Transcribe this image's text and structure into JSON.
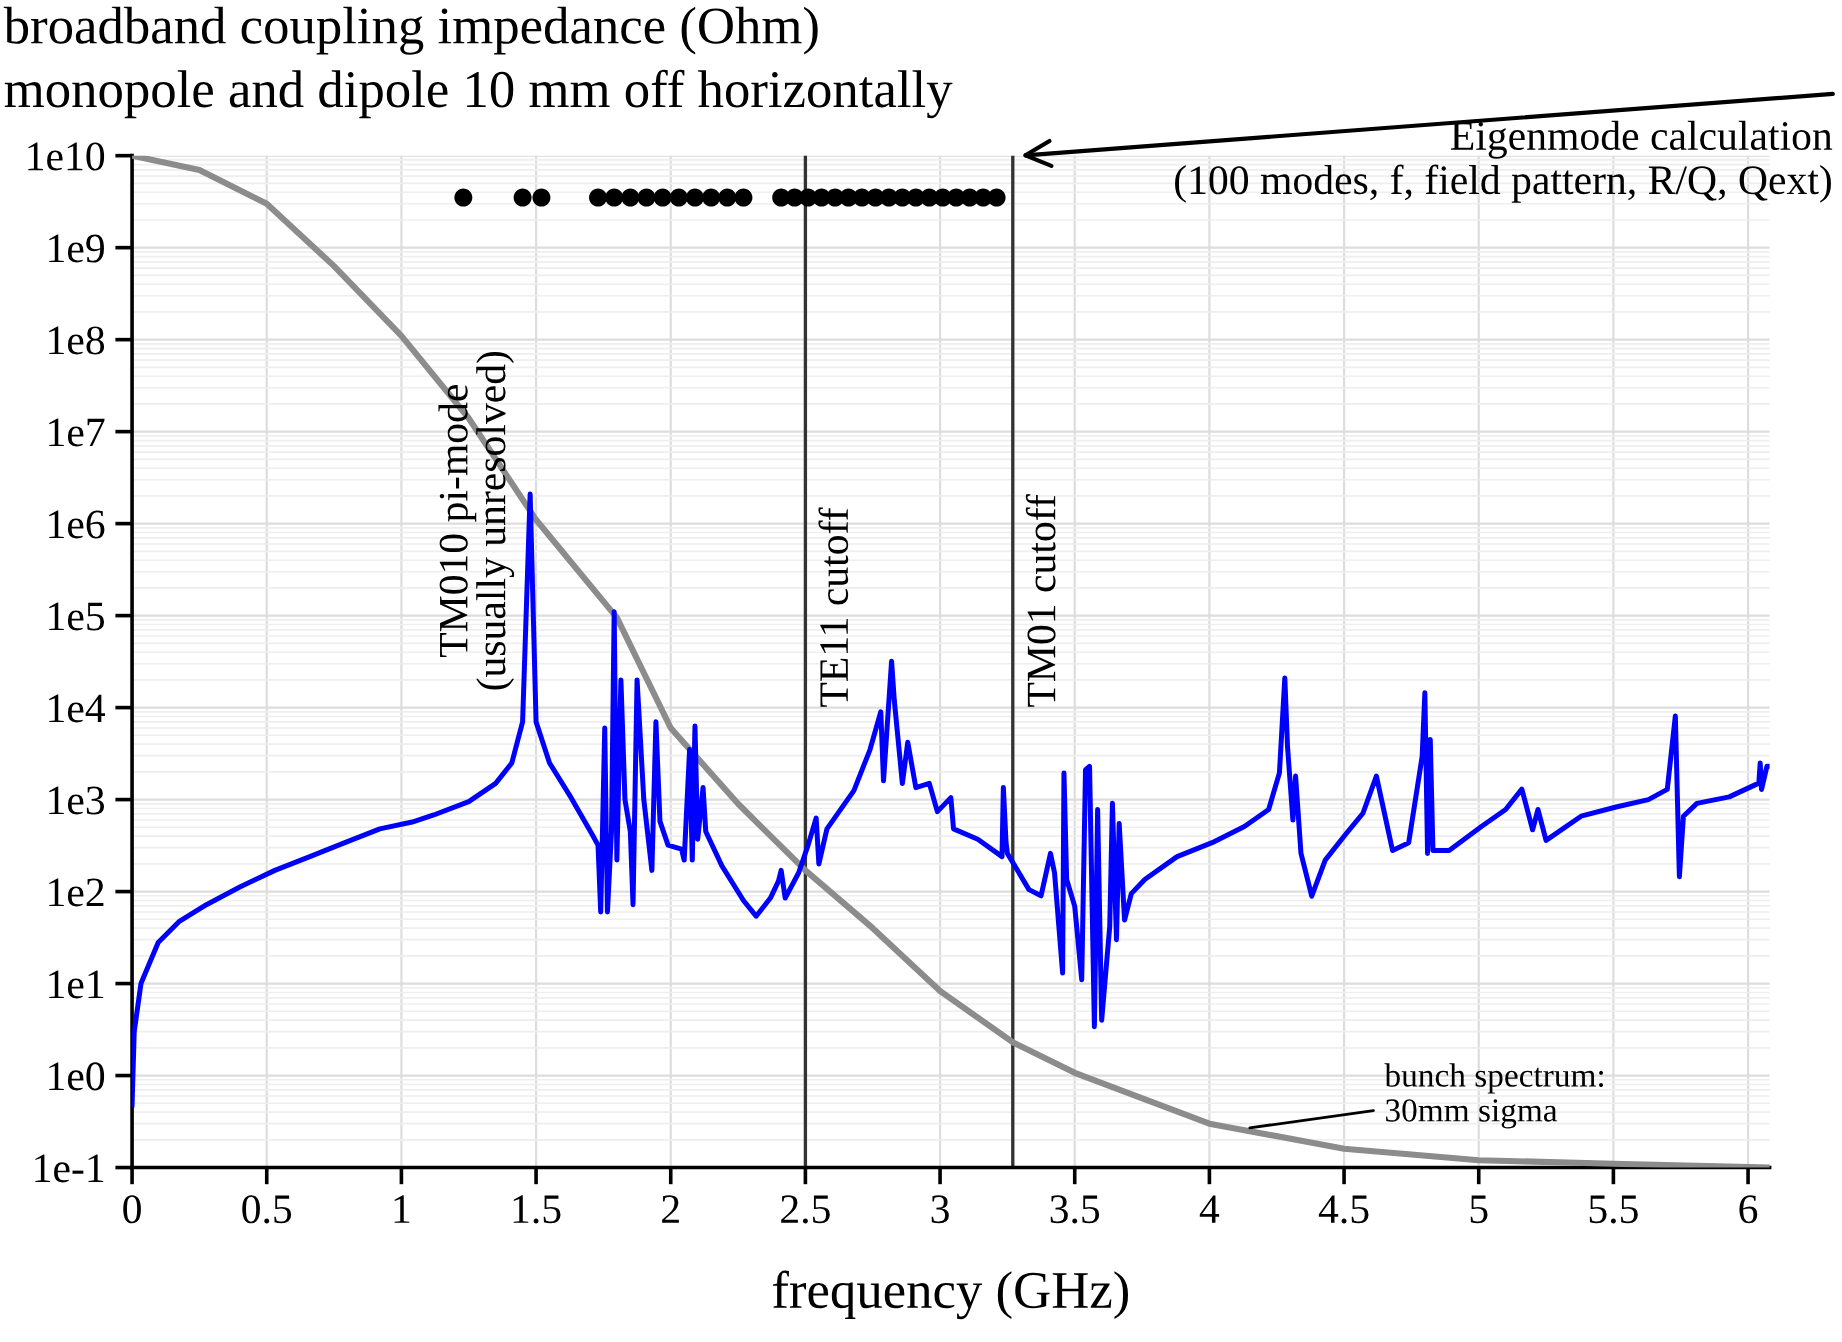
{
  "chart_data": {
    "type": "line",
    "title": "broadband coupling impedance (Ohm)",
    "subtitle": "monopole and dipole 10 mm off horizontally",
    "xlabel": "frequency (GHz)",
    "log": "y",
    "grid": true,
    "legend": false,
    "xlim": [
      0,
      6.08
    ],
    "xticks": [
      0,
      0.5,
      1,
      1.5,
      2,
      2.5,
      3,
      3.5,
      4,
      4.5,
      5,
      5.5,
      6
    ],
    "ylim": [
      0.1,
      10000000000.0
    ],
    "yticks": [
      {
        "value": 0.1,
        "label": "1e-1"
      },
      {
        "value": 1,
        "label": "1e0"
      },
      {
        "value": 10,
        "label": "1e1"
      },
      {
        "value": 100,
        "label": "1e2"
      },
      {
        "value": 1000,
        "label": "1e3"
      },
      {
        "value": 10000,
        "label": "1e4"
      },
      {
        "value": 100000,
        "label": "1e5"
      },
      {
        "value": 1000000,
        "label": "1e6"
      },
      {
        "value": 10000000,
        "label": "1e7"
      },
      {
        "value": 100000000,
        "label": "1e8"
      },
      {
        "value": 1000000000,
        "label": "1e9"
      },
      {
        "value": 10000000000,
        "label": "1e10"
      }
    ],
    "series": [
      {
        "color": "#8c8c8c",
        "x": [
          0,
          0.25,
          0.5,
          0.75,
          1.0,
          1.25,
          1.5,
          1.8,
          2.0,
          2.25,
          2.5,
          2.75,
          3.0,
          3.27,
          3.5,
          4.0,
          4.5,
          5.0,
          5.5,
          6.07
        ],
        "values": [
          10000000000.0,
          7000000000.0,
          3000000000.0,
          630000000.0,
          110000000.0,
          14000000.0,
          1100000.0,
          95000.0,
          6000.0,
          900.0,
          170.0,
          40.0,
          8.3,
          2.3,
          1.07,
          0.3,
          0.16,
          0.12,
          0.11,
          0.1
        ]
      },
      {
        "color": "#0000ff",
        "x": [
          0,
          0.008,
          0.033,
          0.097,
          0.174,
          0.276,
          0.4,
          0.53,
          0.66,
          0.79,
          0.92,
          1.04,
          1.12,
          1.25,
          1.35,
          1.41,
          1.45,
          1.478,
          1.5,
          1.55,
          1.63,
          1.71,
          1.73,
          1.74,
          1.755,
          1.765,
          1.78,
          1.79,
          1.8,
          1.815,
          1.83,
          1.85,
          1.86,
          1.875,
          1.9,
          1.93,
          1.945,
          1.96,
          1.99,
          2.04,
          2.05,
          2.07,
          2.08,
          2.09,
          2.1,
          2.12,
          2.13,
          2.19,
          2.27,
          2.317,
          2.37,
          2.4,
          2.41,
          2.425,
          2.475,
          2.51,
          2.54,
          2.55,
          2.58,
          2.68,
          2.74,
          2.78,
          2.79,
          2.82,
          2.83,
          2.86,
          2.88,
          2.91,
          2.96,
          2.99,
          3.04,
          3.05,
          3.14,
          3.23,
          3.235,
          3.245,
          3.25,
          3.33,
          3.375,
          3.41,
          3.425,
          3.455,
          3.46,
          3.47,
          3.5,
          3.526,
          3.54,
          3.555,
          3.573,
          3.585,
          3.6,
          3.63,
          3.64,
          3.655,
          3.665,
          3.685,
          3.71,
          3.76,
          3.88,
          4.01,
          4.13,
          4.22,
          4.26,
          4.28,
          4.29,
          4.31,
          4.32,
          4.34,
          4.38,
          4.43,
          4.5,
          4.57,
          4.62,
          4.68,
          4.74,
          4.79,
          4.8,
          4.81,
          4.82,
          4.83,
          4.89,
          5.01,
          5.1,
          5.16,
          5.2,
          5.22,
          5.25,
          5.38,
          5.51,
          5.63,
          5.7,
          5.73,
          5.745,
          5.76,
          5.81,
          5.93,
          6.04,
          6.045,
          6.05,
          6.07,
          6.08
        ],
        "values": [
          0.48,
          3,
          10,
          28,
          47,
          72,
          112,
          170,
          240,
          340,
          480,
          570,
          680,
          950,
          1500,
          2500,
          7000,
          2100000,
          7000,
          2500,
          1050,
          410,
          320,
          60,
          6000,
          60,
          450,
          110000,
          220,
          20000,
          1000,
          450,
          72,
          20000,
          1000,
          170,
          7000,
          580,
          320,
          290,
          220,
          3500,
          220,
          6300,
          370,
          1350,
          450,
          190,
          80,
          54,
          85,
          130,
          170,
          85,
          160,
          320,
          630,
          200,
          480,
          1250,
          3500,
          9000,
          1600,
          32000,
          12000,
          1500,
          4200,
          1350,
          1500,
          740,
          1050,
          480,
          370,
          240,
          1350,
          340,
          260,
          105,
          90,
          260,
          160,
          13,
          1950,
          135,
          69,
          11,
          2100,
          2300,
          3.4,
          780,
          4,
          42,
          910,
          30,
          550,
          49,
          95,
          135,
          240,
          340,
          510,
          780,
          1950,
          21000,
          3800,
          600,
          1800,
          260,
          89,
          220,
          400,
          710,
          1800,
          280,
          340,
          2950,
          14500,
          260,
          4500,
          280,
          280,
          510,
          780,
          1300,
          470,
          780,
          360,
          660,
          830,
          1000,
          1290,
          8100,
          145,
          660,
          910,
          1070,
          1510,
          2500,
          1290,
          2300,
          2300
        ]
      },
      {
        "type": "scatter",
        "color": "#000000",
        "marker": "circle",
        "x": [
          1.23,
          1.45,
          1.52,
          1.73,
          1.79,
          1.85,
          1.91,
          1.97,
          2.03,
          2.09,
          2.15,
          2.21,
          2.27,
          2.41,
          2.46,
          2.51,
          2.56,
          2.61,
          2.66,
          2.71,
          2.76,
          2.81,
          2.86,
          2.91,
          2.96,
          3.01,
          3.06,
          3.11,
          3.16,
          3.21
        ],
        "values": [
          3500000000.0,
          3500000000.0,
          3500000000.0,
          3500000000.0,
          3500000000.0,
          3500000000.0,
          3500000000.0,
          3500000000.0,
          3500000000.0,
          3500000000.0,
          3500000000.0,
          3500000000.0,
          3500000000.0,
          3500000000.0,
          3500000000.0,
          3500000000.0,
          3500000000.0,
          3500000000.0,
          3500000000.0,
          3500000000.0,
          3500000000.0,
          3500000000.0,
          3500000000.0,
          3500000000.0,
          3500000000.0,
          3500000000.0,
          3500000000.0,
          3500000000.0,
          3500000000.0,
          3500000000.0
        ]
      }
    ],
    "ref_lines": [
      {
        "axis": "x",
        "value": 2.5,
        "label": "TE11 cutoff",
        "color": "#333333"
      },
      {
        "axis": "x",
        "value": 3.27,
        "label": "TM01 cutoff",
        "color": "#333333"
      }
    ],
    "annotations": [
      {
        "text": "TM010 pi-mode\n(usually unresolved)",
        "x": 1.478,
        "y": 2100000
      },
      {
        "text": "Eigenmode calculation\n(100 modes, f, field pattern, R/Q, Qext)",
        "x": 3.3,
        "y": 10000000000
      },
      {
        "text": "bunch spectrum:\n30mm sigma",
        "x": 4.15,
        "y": 0.27
      }
    ]
  }
}
